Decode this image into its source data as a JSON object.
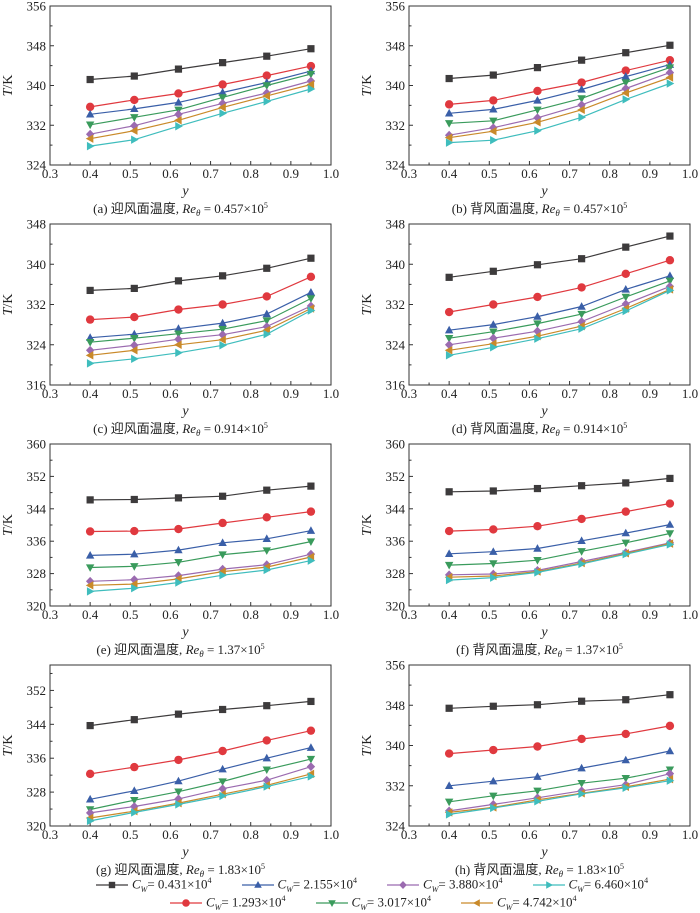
{
  "figure": {
    "legend_title_symbol": "C",
    "legend_subscript": "W"
  },
  "chart_data": [
    {
      "id": "a",
      "type": "line",
      "title": "(a) 迎风面温度, Reθ = 0.457×10⁵",
      "caption_prefix": "(a) 迎风面温度, ",
      "caption_re": "Re",
      "caption_sub": "θ",
      "caption_value": " = 0.457×10",
      "caption_exp": "5",
      "xlabel": "y",
      "ylabel": "T/K",
      "xlim": [
        0.3,
        1.0
      ],
      "ylim": [
        324,
        356
      ],
      "xticks": [
        "0.3",
        "0.4",
        "0.5",
        "0.6",
        "0.7",
        "0.8",
        "0.9",
        "1.0"
      ],
      "yticks": [
        "324",
        "332",
        "340",
        "348",
        "356"
      ],
      "x": [
        0.4,
        0.51,
        0.62,
        0.73,
        0.84,
        0.95
      ],
      "series": [
        {
          "name": "Cw=0.431×10^4",
          "values": [
            341.2,
            341.9,
            343.3,
            344.6,
            345.9,
            347.4
          ]
        },
        {
          "name": "Cw=1.293×10^4",
          "values": [
            335.7,
            337.1,
            338.4,
            340.2,
            342.0,
            343.9
          ]
        },
        {
          "name": "Cw=2.155×10^4",
          "values": [
            334.2,
            335.3,
            336.6,
            338.6,
            340.6,
            342.9
          ]
        },
        {
          "name": "Cw=3.017×10^4",
          "values": [
            332.1,
            333.6,
            335.1,
            337.6,
            340.0,
            342.3
          ]
        },
        {
          "name": "Cw=3.880×10^4",
          "values": [
            330.2,
            331.9,
            334.2,
            336.4,
            338.5,
            340.9
          ]
        },
        {
          "name": "Cw=4.742×10^4",
          "values": [
            329.3,
            330.9,
            333.0,
            335.6,
            337.9,
            340.2
          ]
        },
        {
          "name": "Cw=6.460×10^4",
          "values": [
            327.8,
            329.1,
            331.8,
            334.4,
            336.8,
            339.3
          ]
        }
      ]
    },
    {
      "id": "b",
      "type": "line",
      "title": "(b) 背风面温度, Reθ = 0.457×10⁵",
      "caption_prefix": "(b) 背风面温度, ",
      "caption_re": "Re",
      "caption_sub": "θ",
      "caption_value": " = 0.457×10",
      "caption_exp": "5",
      "xlabel": "y",
      "ylabel": "T/K",
      "xlim": [
        0.3,
        1.0
      ],
      "ylim": [
        324,
        356
      ],
      "xticks": [
        "0.3",
        "0.4",
        "0.5",
        "0.6",
        "0.7",
        "0.8",
        "0.9",
        "1.0"
      ],
      "yticks": [
        "324",
        "332",
        "340",
        "348",
        "356"
      ],
      "x": [
        0.4,
        0.51,
        0.62,
        0.73,
        0.84,
        0.95
      ],
      "series": [
        {
          "name": "Cw=0.431×10^4",
          "values": [
            341.4,
            342.1,
            343.6,
            345.1,
            346.6,
            348.1
          ]
        },
        {
          "name": "Cw=1.293×10^4",
          "values": [
            336.2,
            337.0,
            338.9,
            340.6,
            343.0,
            345.1
          ]
        },
        {
          "name": "Cw=2.155×10^4",
          "values": [
            334.4,
            335.2,
            337.0,
            339.2,
            341.8,
            344.2
          ]
        },
        {
          "name": "Cw=3.017×10^4",
          "values": [
            332.4,
            332.9,
            335.1,
            337.4,
            340.6,
            343.6
          ]
        },
        {
          "name": "Cw=3.880×10^4",
          "values": [
            330.0,
            331.5,
            333.5,
            336.1,
            339.4,
            342.6
          ]
        },
        {
          "name": "Cw=4.742×10^4",
          "values": [
            329.5,
            330.8,
            332.6,
            335.1,
            338.5,
            341.6
          ]
        },
        {
          "name": "Cw=6.460×10^4",
          "values": [
            328.5,
            329.0,
            330.9,
            333.6,
            337.2,
            340.4
          ]
        }
      ]
    },
    {
      "id": "c",
      "type": "line",
      "title": "(c) 迎风面温度, Reθ = 0.914×10⁵",
      "caption_prefix": "(c) 迎风面温度, ",
      "caption_re": "Re",
      "caption_sub": "θ",
      "caption_value": " = 0.914×10",
      "caption_exp": "5",
      "xlabel": "y",
      "ylabel": "T/K",
      "xlim": [
        0.3,
        1.0
      ],
      "ylim": [
        316,
        348
      ],
      "xticks": [
        "0.3",
        "0.4",
        "0.5",
        "0.6",
        "0.7",
        "0.8",
        "0.9",
        "1.0"
      ],
      "yticks": [
        "316",
        "324",
        "332",
        "340",
        "348"
      ],
      "x": [
        0.4,
        0.51,
        0.62,
        0.73,
        0.84,
        0.95
      ],
      "series": [
        {
          "name": "Cw=0.431×10^4",
          "values": [
            334.8,
            335.2,
            336.7,
            337.7,
            339.2,
            341.2
          ]
        },
        {
          "name": "Cw=1.293×10^4",
          "values": [
            329.0,
            329.5,
            331.0,
            332.0,
            333.6,
            337.5
          ]
        },
        {
          "name": "Cw=2.155×10^4",
          "values": [
            325.4,
            326.1,
            327.2,
            328.3,
            330.1,
            334.4
          ]
        },
        {
          "name": "Cw=3.017×10^4",
          "values": [
            324.5,
            325.3,
            326.2,
            327.1,
            328.8,
            333.2
          ]
        },
        {
          "name": "Cw=3.880×10^4",
          "values": [
            322.9,
            323.9,
            325.1,
            326.0,
            327.6,
            331.7
          ]
        },
        {
          "name": "Cw=4.742×10^4",
          "values": [
            321.9,
            322.9,
            324.0,
            325.0,
            326.9,
            331.2
          ]
        },
        {
          "name": "Cw=6.460×10^4",
          "values": [
            320.3,
            321.2,
            322.4,
            323.9,
            326.1,
            330.8
          ]
        }
      ]
    },
    {
      "id": "d",
      "type": "line",
      "title": "(d) 背风面温度, Reθ = 0.914×10⁵",
      "caption_prefix": "(d) 背风面温度, ",
      "caption_re": "Re",
      "caption_sub": "θ",
      "caption_value": " = 0.914×10",
      "caption_exp": "5",
      "xlabel": "y",
      "ylabel": "T/K",
      "xlim": [
        0.3,
        1.0
      ],
      "ylim": [
        316,
        348
      ],
      "xticks": [
        "0.3",
        "0.4",
        "0.5",
        "0.6",
        "0.7",
        "0.8",
        "0.9",
        "1.0"
      ],
      "yticks": [
        "316",
        "324",
        "332",
        "340",
        "348"
      ],
      "x": [
        0.4,
        0.51,
        0.62,
        0.73,
        0.84,
        0.95
      ],
      "series": [
        {
          "name": "Cw=0.431×10^4",
          "values": [
            337.4,
            338.6,
            339.9,
            341.1,
            343.4,
            345.6
          ]
        },
        {
          "name": "Cw=1.293×10^4",
          "values": [
            330.5,
            332.0,
            333.5,
            335.4,
            338.1,
            340.8
          ]
        },
        {
          "name": "Cw=2.155×10^4",
          "values": [
            326.9,
            328.0,
            329.6,
            331.6,
            335.0,
            337.7
          ]
        },
        {
          "name": "Cw=3.017×10^4",
          "values": [
            325.3,
            326.6,
            328.2,
            330.1,
            333.5,
            336.7
          ]
        },
        {
          "name": "Cw=3.880×10^4",
          "values": [
            324.0,
            325.3,
            326.7,
            328.6,
            332.1,
            335.6
          ]
        },
        {
          "name": "Cw=4.742×10^4",
          "values": [
            322.9,
            324.2,
            325.7,
            327.7,
            331.2,
            335.0
          ]
        },
        {
          "name": "Cw=6.460×10^4",
          "values": [
            321.9,
            323.5,
            325.2,
            327.2,
            330.7,
            334.8
          ]
        }
      ]
    },
    {
      "id": "e",
      "type": "line",
      "title": "(e) 迎风面温度, Reθ = 1.37×10⁵",
      "caption_prefix": "(e) 迎风面温度, ",
      "caption_re": "Re",
      "caption_sub": "θ",
      "caption_value": " = 1.37×10",
      "caption_exp": "5",
      "xlabel": "y",
      "ylabel": "T/K",
      "xlim": [
        0.3,
        1.0
      ],
      "ylim": [
        320,
        360
      ],
      "xticks": [
        "0.3",
        "0.4",
        "0.5",
        "0.6",
        "0.7",
        "0.8",
        "0.9",
        "1.0"
      ],
      "yticks": [
        "320",
        "328",
        "336",
        "344",
        "352",
        "360"
      ],
      "x": [
        0.4,
        0.51,
        0.62,
        0.73,
        0.84,
        0.95
      ],
      "series": [
        {
          "name": "Cw=0.431×10^4",
          "values": [
            346.2,
            346.3,
            346.7,
            347.1,
            348.6,
            349.6
          ]
        },
        {
          "name": "Cw=1.293×10^4",
          "values": [
            338.4,
            338.5,
            339.0,
            340.5,
            341.9,
            343.3
          ]
        },
        {
          "name": "Cw=2.155×10^4",
          "values": [
            332.5,
            332.8,
            333.8,
            335.6,
            336.6,
            338.6
          ]
        },
        {
          "name": "Cw=3.017×10^4",
          "values": [
            329.5,
            329.8,
            330.8,
            332.7,
            333.7,
            335.9
          ]
        },
        {
          "name": "Cw=3.880×10^4",
          "values": [
            326.1,
            326.5,
            327.5,
            329.1,
            330.2,
            332.8
          ]
        },
        {
          "name": "Cw=4.742×10^4",
          "values": [
            325.1,
            325.4,
            326.7,
            328.5,
            329.6,
            332.1
          ]
        },
        {
          "name": "Cw=6.460×10^4",
          "values": [
            323.6,
            324.4,
            325.8,
            327.6,
            328.9,
            331.2
          ]
        }
      ]
    },
    {
      "id": "f",
      "type": "line",
      "title": "(f) 背风面温度, Reθ = 1.37×10⁵",
      "caption_prefix": "(f) 背风面温度, ",
      "caption_re": "Re",
      "caption_sub": "θ",
      "caption_value": " = 1.37×10",
      "caption_exp": "5",
      "xlabel": "y",
      "ylabel": "T/K",
      "xlim": [
        0.3,
        1.0
      ],
      "ylim": [
        320,
        360
      ],
      "xticks": [
        "0.3",
        "0.4",
        "0.5",
        "0.6",
        "0.7",
        "0.8",
        "0.9",
        "1.0"
      ],
      "yticks": [
        "320",
        "328",
        "336",
        "344",
        "352",
        "360"
      ],
      "x": [
        0.4,
        0.51,
        0.62,
        0.73,
        0.84,
        0.95
      ],
      "series": [
        {
          "name": "Cw=0.431×10^4",
          "values": [
            348.2,
            348.4,
            349.0,
            349.7,
            350.4,
            351.5
          ]
        },
        {
          "name": "Cw=1.293×10^4",
          "values": [
            338.5,
            338.9,
            339.7,
            341.5,
            343.3,
            345.3
          ]
        },
        {
          "name": "Cw=2.155×10^4",
          "values": [
            332.9,
            333.4,
            334.2,
            336.1,
            338.0,
            340.1
          ]
        },
        {
          "name": "Cw=3.017×10^4",
          "values": [
            330.1,
            330.5,
            331.3,
            333.5,
            335.6,
            337.9
          ]
        },
        {
          "name": "Cw=3.880×10^4",
          "values": [
            327.7,
            327.9,
            328.8,
            331.0,
            333.2,
            335.6
          ]
        },
        {
          "name": "Cw=4.742×10^4",
          "values": [
            327.1,
            327.4,
            328.5,
            330.6,
            333.0,
            335.4
          ]
        },
        {
          "name": "Cw=6.460×10^4",
          "values": [
            326.4,
            327.0,
            328.3,
            330.4,
            332.8,
            335.2
          ]
        }
      ]
    },
    {
      "id": "g",
      "type": "line",
      "title": "(g) 迎风面温度, Reθ = 1.83×10⁵",
      "caption_prefix": "(g) 迎风面温度, ",
      "caption_re": "Re",
      "caption_sub": "θ",
      "caption_value": " = 1.83×10",
      "caption_exp": "5",
      "xlabel": "y",
      "ylabel": "T/K",
      "xlim": [
        0.3,
        1.0
      ],
      "ylim": [
        320,
        358
      ],
      "xticks": [
        "0.3",
        "0.4",
        "0.5",
        "0.6",
        "0.7",
        "0.8",
        "0.9",
        "1.0"
      ],
      "yticks": [
        "320",
        "328",
        "336",
        "344",
        "352"
      ],
      "x": [
        0.4,
        0.51,
        0.62,
        0.73,
        0.84,
        0.95
      ],
      "series": [
        {
          "name": "Cw=0.431×10^4",
          "values": [
            343.7,
            345.1,
            346.4,
            347.5,
            348.4,
            349.4
          ]
        },
        {
          "name": "Cw=1.293×10^4",
          "values": [
            332.3,
            333.9,
            335.6,
            337.7,
            340.2,
            342.5
          ]
        },
        {
          "name": "Cw=2.155×10^4",
          "values": [
            326.3,
            328.3,
            330.6,
            333.4,
            336.0,
            338.5
          ]
        },
        {
          "name": "Cw=3.017×10^4",
          "values": [
            323.9,
            326.1,
            328.1,
            330.5,
            333.3,
            335.8
          ]
        },
        {
          "name": "Cw=3.880×10^4",
          "values": [
            323.1,
            324.6,
            326.4,
            328.8,
            330.8,
            334.0
          ]
        },
        {
          "name": "Cw=4.742×10^4",
          "values": [
            321.9,
            323.5,
            325.4,
            327.5,
            329.6,
            332.3
          ]
        },
        {
          "name": "Cw=6.460×10^4",
          "values": [
            321.2,
            323.2,
            325.1,
            327.1,
            329.3,
            331.7
          ]
        }
      ]
    },
    {
      "id": "h",
      "type": "line",
      "title": "(h) 背风面温度, Reθ = 1.83×10⁵",
      "caption_prefix": "(h) 背风面温度, ",
      "caption_re": "Re",
      "caption_sub": "θ",
      "caption_value": " = 1.83×10",
      "caption_exp": "5",
      "xlabel": "y",
      "ylabel": "T/K",
      "xlim": [
        0.3,
        1.0
      ],
      "ylim": [
        324,
        356
      ],
      "xticks": [
        "0.3",
        "0.4",
        "0.5",
        "0.6",
        "0.7",
        "0.8",
        "0.9",
        "1.0"
      ],
      "yticks": [
        "324",
        "332",
        "340",
        "348",
        "356"
      ],
      "x": [
        0.4,
        0.51,
        0.62,
        0.73,
        0.84,
        0.95
      ],
      "series": [
        {
          "name": "Cw=0.431×10^4",
          "values": [
            347.4,
            347.8,
            348.1,
            348.8,
            349.1,
            350.1
          ]
        },
        {
          "name": "Cw=1.293×10^4",
          "values": [
            338.4,
            339.1,
            339.8,
            341.3,
            342.3,
            343.9
          ]
        },
        {
          "name": "Cw=2.155×10^4",
          "values": [
            332.0,
            332.9,
            333.8,
            335.5,
            337.1,
            338.9
          ]
        },
        {
          "name": "Cw=3.017×10^4",
          "values": [
            328.8,
            330.0,
            331.0,
            332.5,
            333.5,
            335.2
          ]
        },
        {
          "name": "Cw=3.880×10^4",
          "values": [
            327.0,
            328.3,
            329.6,
            331.0,
            332.2,
            334.4
          ]
        },
        {
          "name": "Cw=4.742×10^4",
          "values": [
            326.7,
            327.7,
            329.2,
            330.5,
            331.8,
            333.3
          ]
        },
        {
          "name": "Cw=6.460×10^4",
          "values": [
            326.3,
            327.6,
            328.9,
            330.4,
            331.6,
            333.0
          ]
        }
      ]
    }
  ],
  "legend": {
    "row1": [
      {
        "series_index": 0,
        "label_value": "= 0.431×10",
        "exp": "4",
        "color": "#3d3b3c",
        "marker": "square"
      },
      {
        "series_index": 2,
        "label_value": "= 2.155×10",
        "exp": "4",
        "color": "#3a5fa8",
        "marker": "triangle-up"
      },
      {
        "series_index": 4,
        "label_value": "= 3.880×10",
        "exp": "4",
        "color": "#9b6bb0",
        "marker": "diamond"
      },
      {
        "series_index": 6,
        "label_value": "= 6.460×10",
        "exp": "4",
        "color": "#3fbdbd",
        "marker": "triangle-right"
      }
    ],
    "row2": [
      {
        "series_index": 1,
        "label_value": "= 1.293×10",
        "exp": "4",
        "color": "#e0393f",
        "marker": "circle"
      },
      {
        "series_index": 3,
        "label_value": "= 3.017×10",
        "exp": "4",
        "color": "#3a9b5c",
        "marker": "triangle-down"
      },
      {
        "series_index": 5,
        "label_value": "= 4.742×10",
        "exp": "4",
        "color": "#c98a2a",
        "marker": "triangle-left"
      }
    ]
  },
  "series_styles": [
    {
      "color": "#3d3b3c",
      "marker": "square"
    },
    {
      "color": "#e0393f",
      "marker": "circle"
    },
    {
      "color": "#3a5fa8",
      "marker": "triangle-up"
    },
    {
      "color": "#3a9b5c",
      "marker": "triangle-down"
    },
    {
      "color": "#9b6bb0",
      "marker": "diamond"
    },
    {
      "color": "#c98a2a",
      "marker": "triangle-left"
    },
    {
      "color": "#3fbdbd",
      "marker": "triangle-right"
    }
  ]
}
